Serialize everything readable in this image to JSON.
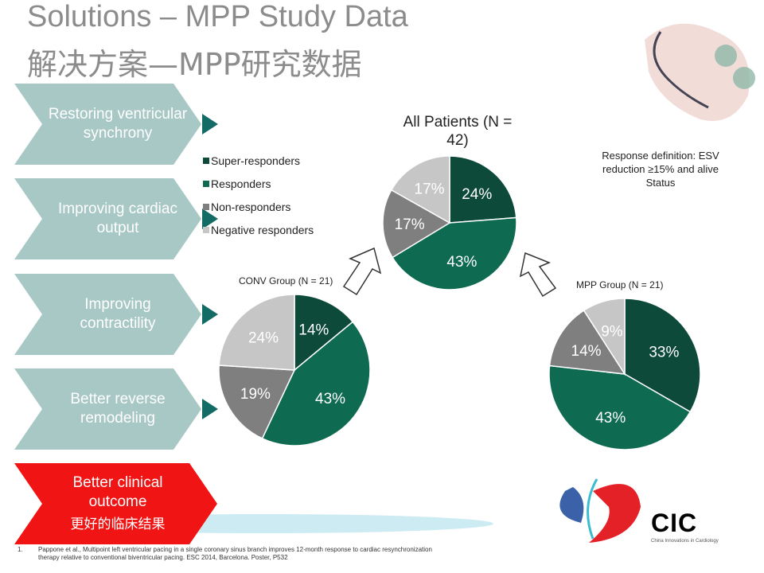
{
  "title_en": "Solutions – MPP Study Data",
  "title_zh": "解决方案—MPP研究数据",
  "steps": [
    {
      "label": "Restoring ventricular synchrony"
    },
    {
      "label": "Improving cardiac output"
    },
    {
      "label": "Improving contractility"
    },
    {
      "label": "Better reverse remodeling"
    },
    {
      "label": "Better clinical outcome",
      "sub": "更好的临床结果"
    }
  ],
  "legend": [
    "Super-responders",
    "Responders",
    "Non-responders",
    "Negative responders"
  ],
  "response_definition": "Response definition: ESV reduction ≥15% and alive Status",
  "colors": {
    "super": "#0d4a3a",
    "resp": "#0e6b52",
    "non": "#7f7f7f",
    "neg": "#c6c6c6",
    "step": "#a8c8c5",
    "step_dark": "#136b66",
    "red": "#f01414"
  },
  "chart_data": [
    {
      "type": "pie",
      "title": "All Patients (N = 42)",
      "categories": [
        "Super-responders",
        "Responders",
        "Non-responders",
        "Negative responders"
      ],
      "values": [
        24,
        43,
        17,
        17
      ],
      "labels": [
        "24%",
        "43%",
        "17%",
        "17%"
      ]
    },
    {
      "type": "pie",
      "title": "CONV Group (N = 21)",
      "categories": [
        "Super-responders",
        "Responders",
        "Non-responders",
        "Negative responders"
      ],
      "values": [
        14,
        43,
        19,
        24
      ],
      "labels": [
        "14%",
        "43%",
        "19%",
        "24%"
      ]
    },
    {
      "type": "pie",
      "title": "MPP Group (N = 21)",
      "categories": [
        "Super-responders",
        "Responders",
        "Non-responders",
        "Negative responders"
      ],
      "values": [
        33,
        43,
        14,
        9
      ],
      "labels": [
        "33%",
        "43%",
        "14%",
        "9%"
      ]
    }
  ],
  "logo": {
    "name": "CIC",
    "tagline": "China Innovations in Cardiology"
  },
  "footnote": {
    "num": "1.",
    "text": "Pappone et al., Multipoint left ventricular pacing in a single coronary sinus branch improves 12-month response to cardiac resynchronization therapy relative to conventional biventricular pacing.  ESC 2014, Barcelona.  Poster, P532"
  }
}
